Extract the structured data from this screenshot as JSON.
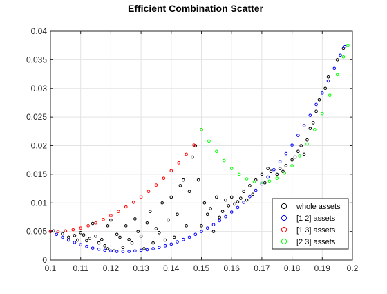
{
  "chart_data": {
    "type": "scatter",
    "title": "Efficient Combination Scatter",
    "xlabel": "",
    "ylabel": "",
    "xlim": [
      0.1,
      0.2
    ],
    "ylim": [
      0,
      0.04
    ],
    "x_ticks": [
      "0.1",
      "0.11",
      "0.12",
      "0.13",
      "0.14",
      "0.15",
      "0.16",
      "0.17",
      "0.18",
      "0.19",
      "0.2"
    ],
    "y_ticks": [
      "0",
      "0.005",
      "0.01",
      "0.015",
      "0.02",
      "0.025",
      "0.03",
      "0.035",
      "0.04"
    ],
    "x_tick_values": [
      0.1,
      0.11,
      0.12,
      0.13,
      0.14,
      0.15,
      0.16,
      0.17,
      0.18,
      0.19,
      0.2
    ],
    "y_tick_values": [
      0,
      0.005,
      0.01,
      0.015,
      0.02,
      0.025,
      0.03,
      0.035,
      0.04
    ],
    "grid": true,
    "legend_position": "bottom-right",
    "marker": "circle",
    "series": [
      {
        "name": "whole assets",
        "color": "#000000",
        "points": [
          [
            0.101,
            0.0051
          ],
          [
            0.104,
            0.0046
          ],
          [
            0.106,
            0.004
          ],
          [
            0.108,
            0.0043
          ],
          [
            0.109,
            0.0035
          ],
          [
            0.11,
            0.0048
          ],
          [
            0.111,
            0.0044
          ],
          [
            0.112,
            0.0034
          ],
          [
            0.113,
            0.0038
          ],
          [
            0.114,
            0.0064
          ],
          [
            0.115,
            0.0042
          ],
          [
            0.116,
            0.003
          ],
          [
            0.117,
            0.0036
          ],
          [
            0.118,
            0.0025
          ],
          [
            0.119,
            0.002
          ],
          [
            0.119,
            0.006
          ],
          [
            0.12,
            0.007
          ],
          [
            0.121,
            0.0016
          ],
          [
            0.122,
            0.0045
          ],
          [
            0.123,
            0.004
          ],
          [
            0.124,
            0.0022
          ],
          [
            0.125,
            0.006
          ],
          [
            0.126,
            0.0036
          ],
          [
            0.127,
            0.003
          ],
          [
            0.128,
            0.0072
          ],
          [
            0.129,
            0.005
          ],
          [
            0.13,
            0.0042
          ],
          [
            0.131,
            0.002
          ],
          [
            0.132,
            0.0065
          ],
          [
            0.133,
            0.0085
          ],
          [
            0.134,
            0.003
          ],
          [
            0.135,
            0.0055
          ],
          [
            0.136,
            0.0048
          ],
          [
            0.137,
            0.01
          ],
          [
            0.138,
            0.0035
          ],
          [
            0.139,
            0.007
          ],
          [
            0.14,
            0.011
          ],
          [
            0.141,
            0.004
          ],
          [
            0.142,
            0.008
          ],
          [
            0.143,
            0.013
          ],
          [
            0.144,
            0.014
          ],
          [
            0.145,
            0.006
          ],
          [
            0.146,
            0.012
          ],
          [
            0.147,
            0.018
          ],
          [
            0.148,
            0.02
          ],
          [
            0.149,
            0.014
          ],
          [
            0.15,
            0.006
          ],
          [
            0.151,
            0.01
          ],
          [
            0.152,
            0.008
          ],
          [
            0.153,
            0.009
          ],
          [
            0.154,
            0.005
          ],
          [
            0.155,
            0.011
          ],
          [
            0.156,
            0.0075
          ],
          [
            0.157,
            0.0085
          ],
          [
            0.158,
            0.0105
          ],
          [
            0.159,
            0.0095
          ],
          [
            0.16,
            0.011
          ],
          [
            0.161,
            0.0098
          ],
          [
            0.162,
            0.0102
          ],
          [
            0.163,
            0.0108
          ],
          [
            0.164,
            0.012
          ],
          [
            0.165,
            0.0105
          ],
          [
            0.166,
            0.013
          ],
          [
            0.167,
            0.0115
          ],
          [
            0.168,
            0.014
          ],
          [
            0.17,
            0.015
          ],
          [
            0.171,
            0.0135
          ],
          [
            0.172,
            0.016
          ],
          [
            0.173,
            0.0155
          ],
          [
            0.175,
            0.015
          ],
          [
            0.176,
            0.016
          ],
          [
            0.177,
            0.0155
          ],
          [
            0.178,
            0.0165
          ],
          [
            0.18,
            0.0175
          ],
          [
            0.181,
            0.018
          ],
          [
            0.182,
            0.019
          ],
          [
            0.183,
            0.02
          ],
          [
            0.184,
            0.0185
          ],
          [
            0.185,
            0.021
          ],
          [
            0.186,
            0.023
          ],
          [
            0.187,
            0.024
          ],
          [
            0.188,
            0.026
          ],
          [
            0.189,
            0.028
          ],
          [
            0.191,
            0.03
          ],
          [
            0.192,
            0.032
          ],
          [
            0.195,
            0.035
          ],
          [
            0.197,
            0.037
          ]
        ]
      },
      {
        "name": "[1 2] assets",
        "color": "#0000ff",
        "points": [
          [
            0.1,
            0.005
          ],
          [
            0.102,
            0.0045
          ],
          [
            0.104,
            0.004
          ],
          [
            0.106,
            0.0035
          ],
          [
            0.108,
            0.0031
          ],
          [
            0.11,
            0.0027
          ],
          [
            0.112,
            0.0024
          ],
          [
            0.114,
            0.0021
          ],
          [
            0.116,
            0.0019
          ],
          [
            0.118,
            0.0017
          ],
          [
            0.12,
            0.0016
          ],
          [
            0.122,
            0.0015
          ],
          [
            0.124,
            0.0015
          ],
          [
            0.126,
            0.0015
          ],
          [
            0.128,
            0.0016
          ],
          [
            0.13,
            0.0017
          ],
          [
            0.132,
            0.0018
          ],
          [
            0.134,
            0.002
          ],
          [
            0.136,
            0.0022
          ],
          [
            0.138,
            0.0025
          ],
          [
            0.14,
            0.0028
          ],
          [
            0.142,
            0.0032
          ],
          [
            0.144,
            0.0036
          ],
          [
            0.146,
            0.004
          ],
          [
            0.148,
            0.0045
          ],
          [
            0.15,
            0.005
          ],
          [
            0.152,
            0.0056
          ],
          [
            0.154,
            0.0062
          ],
          [
            0.156,
            0.0069
          ],
          [
            0.158,
            0.0076
          ],
          [
            0.16,
            0.0084
          ],
          [
            0.162,
            0.0092
          ],
          [
            0.164,
            0.0101
          ],
          [
            0.166,
            0.0111
          ],
          [
            0.168,
            0.0122
          ],
          [
            0.17,
            0.0133
          ],
          [
            0.172,
            0.0145
          ],
          [
            0.174,
            0.0158
          ],
          [
            0.176,
            0.0172
          ],
          [
            0.178,
            0.0186
          ],
          [
            0.18,
            0.0201
          ],
          [
            0.182,
            0.0218
          ],
          [
            0.184,
            0.0235
          ],
          [
            0.186,
            0.0253
          ],
          [
            0.188,
            0.0272
          ],
          [
            0.19,
            0.0292
          ],
          [
            0.192,
            0.0313
          ],
          [
            0.194,
            0.0335
          ],
          [
            0.196,
            0.0358
          ],
          [
            0.1975,
            0.0373
          ]
        ]
      },
      {
        "name": "[1 3] assets",
        "color": "#ff0000",
        "points": [
          [
            0.1,
            0.005
          ],
          [
            0.1025,
            0.005
          ],
          [
            0.105,
            0.0051
          ],
          [
            0.1075,
            0.0053
          ],
          [
            0.11,
            0.0056
          ],
          [
            0.1125,
            0.006
          ],
          [
            0.115,
            0.0065
          ],
          [
            0.1175,
            0.0071
          ],
          [
            0.12,
            0.0078
          ],
          [
            0.1225,
            0.0085
          ],
          [
            0.125,
            0.0093
          ],
          [
            0.1275,
            0.0101
          ],
          [
            0.13,
            0.011
          ],
          [
            0.1325,
            0.012
          ],
          [
            0.135,
            0.0131
          ],
          [
            0.1375,
            0.0143
          ],
          [
            0.14,
            0.0156
          ],
          [
            0.1425,
            0.017
          ],
          [
            0.145,
            0.0185
          ],
          [
            0.1475,
            0.0201
          ],
          [
            0.15,
            0.0228
          ]
        ]
      },
      {
        "name": "[2 3] assets",
        "color": "#00ff00",
        "points": [
          [
            0.15,
            0.0228
          ],
          [
            0.1525,
            0.0208
          ],
          [
            0.155,
            0.019
          ],
          [
            0.1575,
            0.0174
          ],
          [
            0.16,
            0.016
          ],
          [
            0.1625,
            0.015
          ],
          [
            0.165,
            0.0142
          ],
          [
            0.1675,
            0.0137
          ],
          [
            0.17,
            0.0136
          ],
          [
            0.1725,
            0.0138
          ],
          [
            0.175,
            0.0143
          ],
          [
            0.1775,
            0.0152
          ],
          [
            0.18,
            0.0165
          ],
          [
            0.1825,
            0.0182
          ],
          [
            0.185,
            0.0203
          ],
          [
            0.1875,
            0.0228
          ],
          [
            0.19,
            0.0256
          ],
          [
            0.1925,
            0.0288
          ],
          [
            0.195,
            0.0324
          ],
          [
            0.197,
            0.0355
          ],
          [
            0.1985,
            0.0375
          ]
        ]
      }
    ]
  }
}
